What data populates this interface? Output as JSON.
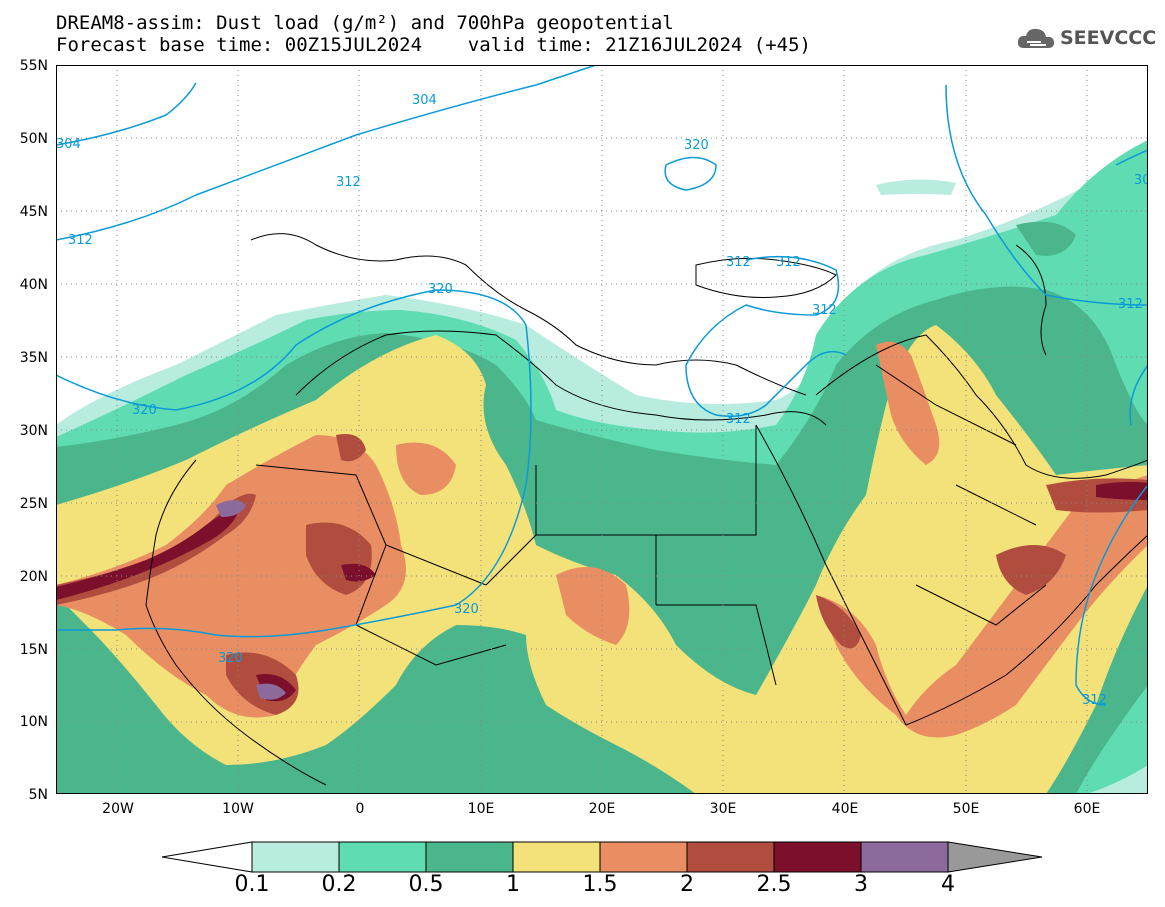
{
  "header": {
    "line1": "DREAM8-assim: Dust load (g/m²) and 700hPa geopotential",
    "line2": "Forecast base time: 00Z15JUL2024    valid time: 21Z16JUL2024 (+45)"
  },
  "logo": {
    "text": "SEEVCCC",
    "icon": "cloud-icon"
  },
  "axes": {
    "lat_labels": [
      "55N",
      "50N",
      "45N",
      "40N",
      "35N",
      "30N",
      "25N",
      "20N",
      "15N",
      "10N",
      "5N"
    ],
    "lon_labels": [
      "20W",
      "10W",
      "0",
      "10E",
      "20E",
      "30E",
      "40E",
      "50E",
      "60E"
    ]
  },
  "contour_labels": [
    {
      "text": "304"
    },
    {
      "text": "312"
    },
    {
      "text": "312"
    },
    {
      "text": "320"
    },
    {
      "text": "312"
    },
    {
      "text": "312"
    },
    {
      "text": "312"
    },
    {
      "text": "320"
    },
    {
      "text": "320"
    },
    {
      "text": "312"
    },
    {
      "text": "320"
    },
    {
      "text": "320"
    },
    {
      "text": "312"
    },
    {
      "text": "312"
    },
    {
      "text": "304"
    },
    {
      "text": "30"
    }
  ],
  "colorbar": {
    "labels": [
      "0.1",
      "0.2",
      "0.5",
      "1",
      "1.5",
      "2",
      "2.5",
      "3",
      "4"
    ],
    "colors": [
      "#b7ecdf",
      "#5fdcb2",
      "#4bb58c",
      "#f3e17a",
      "#e98e63",
      "#b04d3e",
      "#7c0f2b",
      "#8c6a9c"
    ],
    "under_color": "#ffffff",
    "over_color": "#999999"
  },
  "colors": {
    "contour": "#0a9ad8",
    "border": "#000000",
    "level_0.1": "#b7ecdf",
    "level_0.2": "#5fdcb2",
    "level_0.5": "#4bb58c",
    "level_1": "#f3e17a",
    "level_1.5": "#e98e63",
    "level_2": "#b04d3e",
    "level_2.5": "#7c0f2b",
    "level_3": "#8c6a9c"
  }
}
